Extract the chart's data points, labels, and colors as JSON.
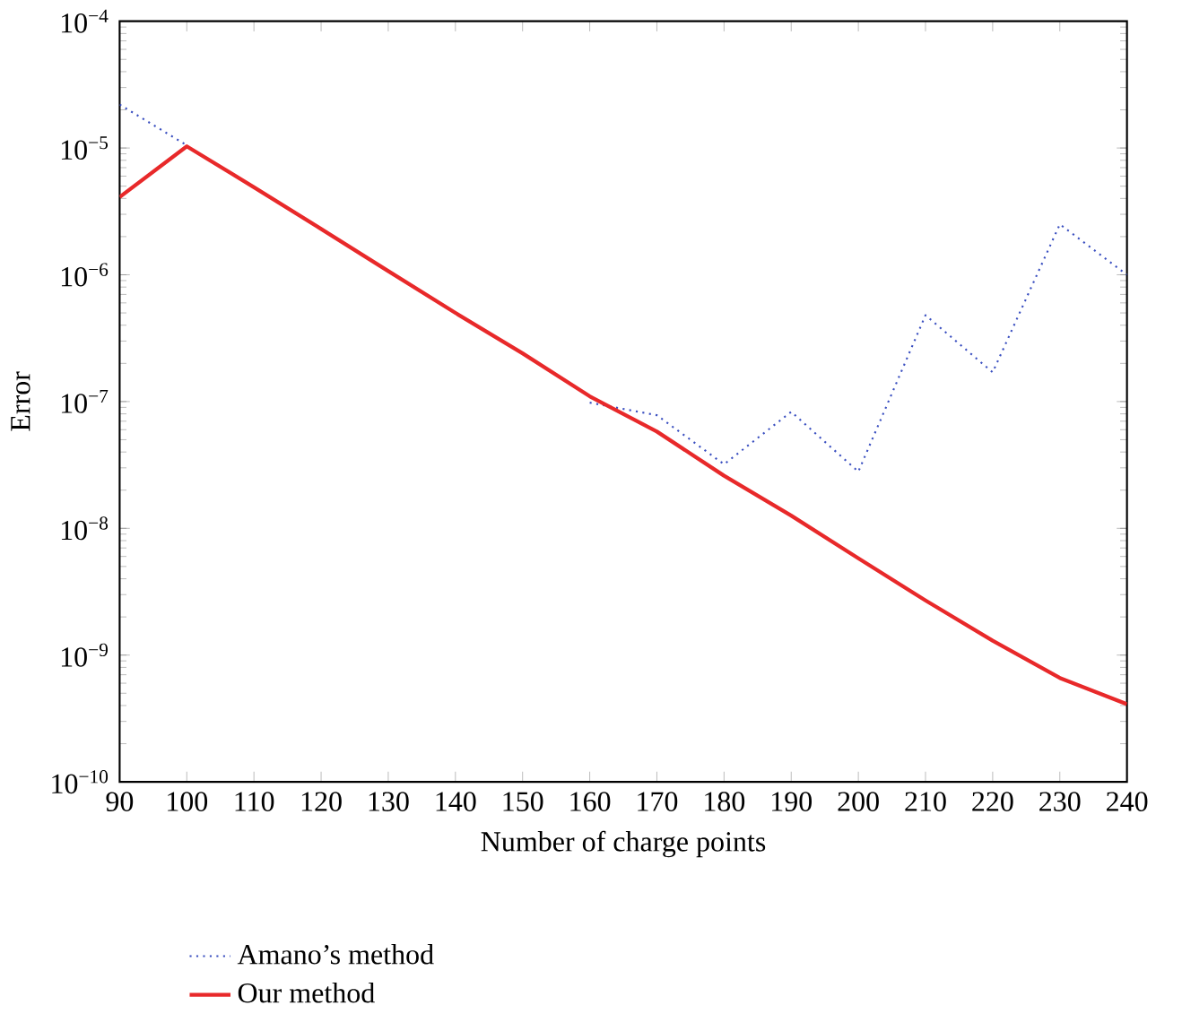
{
  "chart_data": {
    "type": "line",
    "xlabel": "Number of charge points",
    "ylabel": "Error",
    "x": [
      90,
      100,
      110,
      120,
      130,
      140,
      150,
      160,
      170,
      180,
      190,
      200,
      210,
      220,
      230,
      240
    ],
    "series": [
      {
        "name": "Amano’s method",
        "color": "#3a4fc0",
        "line_style": "dotted",
        "values": [
          2.2e-05,
          1.05e-05,
          null,
          null,
          null,
          null,
          null,
          9.8e-08,
          7.8e-08,
          3.2e-08,
          8.3e-08,
          2.8e-08,
          4.8e-07,
          1.7e-07,
          2.5e-06,
          1e-06
        ]
      },
      {
        "name": "Our method",
        "color": "#e8292a",
        "line_style": "solid",
        "values": [
          4.1e-06,
          1.03e-05,
          4.9e-06,
          2.3e-06,
          1.07e-06,
          5e-07,
          2.4e-07,
          1.1e-07,
          5.8e-08,
          2.6e-08,
          1.26e-08,
          5.8e-09,
          2.7e-09,
          1.3e-09,
          6.6e-10,
          4.1e-10
        ]
      }
    ],
    "xlim": [
      90,
      240
    ],
    "ylim": [
      1e-10,
      0.0001
    ],
    "xticks": [
      90,
      100,
      110,
      120,
      130,
      140,
      150,
      160,
      170,
      180,
      190,
      200,
      210,
      220,
      230,
      240
    ],
    "yticks": [
      {
        "value": 1e-10,
        "label": "10$^{−10}$"
      },
      {
        "value": 1e-09,
        "label": "10$^{−9}$"
      },
      {
        "value": 1e-08,
        "label": "10$^{−8}$"
      },
      {
        "value": 1e-07,
        "label": "10$^{−7}$"
      },
      {
        "value": 1e-06,
        "label": "10$^{−6}$"
      },
      {
        "value": 1e-05,
        "label": "10$^{−5}$"
      },
      {
        "value": 0.0001,
        "label": "10$^{−4}$"
      }
    ],
    "log": "y",
    "grid": false,
    "legend": "bottom"
  }
}
